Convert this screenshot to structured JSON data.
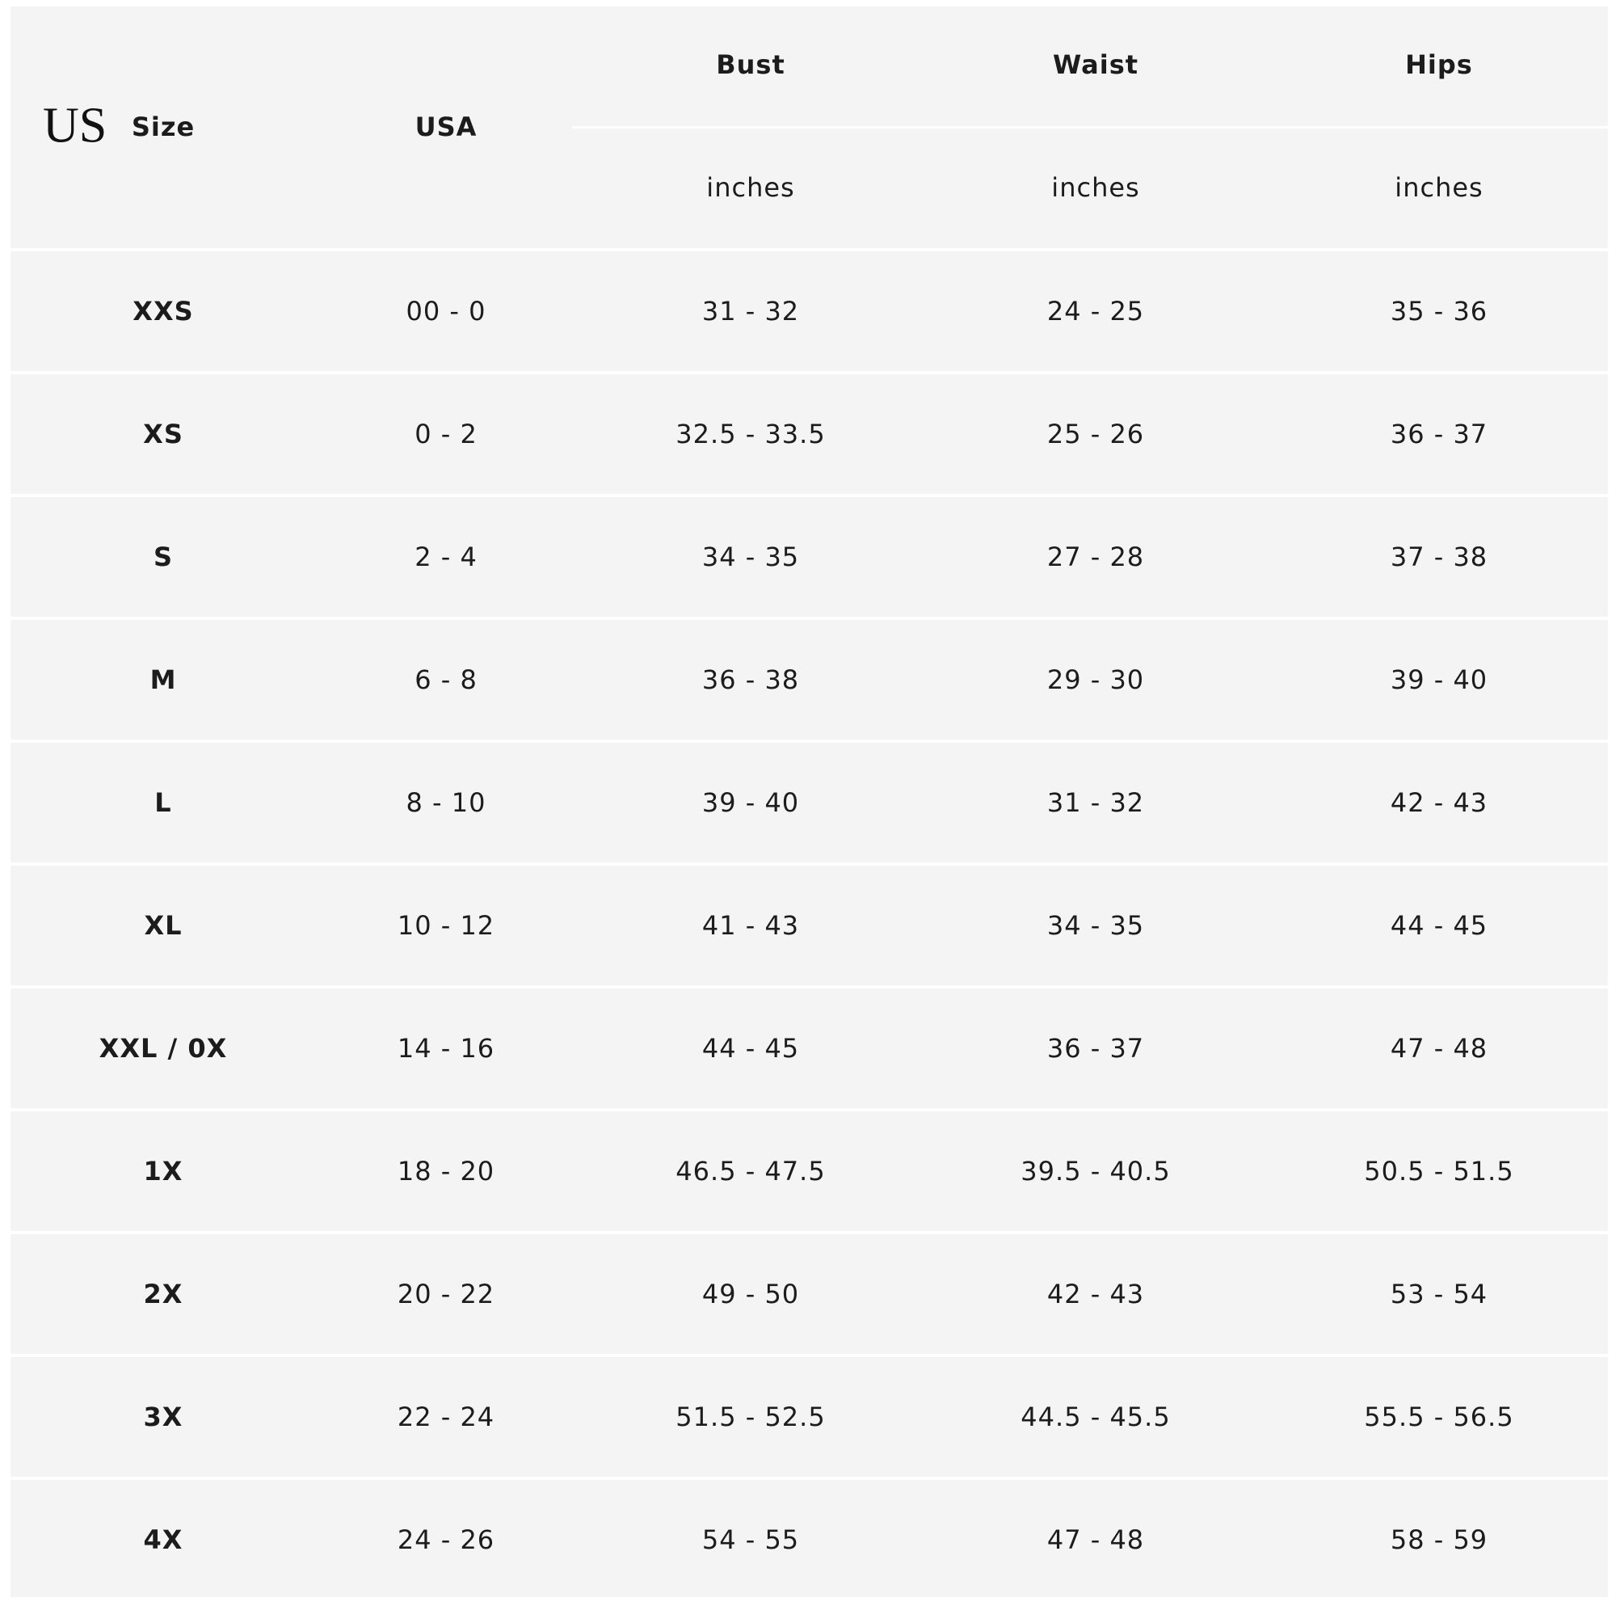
{
  "header": {
    "region_label": "US",
    "columns": [
      "Size",
      "USA",
      "Bust",
      "Waist",
      "Hips"
    ],
    "units": [
      "inches",
      "inches",
      "inches"
    ]
  },
  "rows": [
    [
      "XXS",
      "00 - 0",
      "31 - 32",
      "24 - 25",
      "35 - 36"
    ],
    [
      "XS",
      "0 - 2",
      "32.5 - 33.5",
      "25 - 26",
      "36 - 37"
    ],
    [
      "S",
      "2 - 4",
      "34 - 35",
      "27 - 28",
      "37 - 38"
    ],
    [
      "M",
      "6 - 8",
      "36 - 38",
      "29 - 30",
      "39 - 40"
    ],
    [
      "L",
      "8 - 10",
      "39 - 40",
      "31 - 32",
      "42 - 43"
    ],
    [
      "XL",
      "10 - 12",
      "41 - 43",
      "34 - 35",
      "44 - 45"
    ],
    [
      "XXL / 0X",
      "14 - 16",
      "44 - 45",
      "36 - 37",
      "47 - 48"
    ],
    [
      "1X",
      "18 - 20",
      "46.5 - 47.5",
      "39.5 - 40.5",
      "50.5 - 51.5"
    ],
    [
      "2X",
      "20 - 22",
      "49 - 50",
      "42 - 43",
      "53 - 54"
    ],
    [
      "3X",
      "22 - 24",
      "51.5 - 52.5",
      "44.5 - 45.5",
      "55.5 - 56.5"
    ],
    [
      "4X",
      "24 - 26",
      "54 - 55",
      "47 - 48",
      "58 - 59"
    ]
  ]
}
